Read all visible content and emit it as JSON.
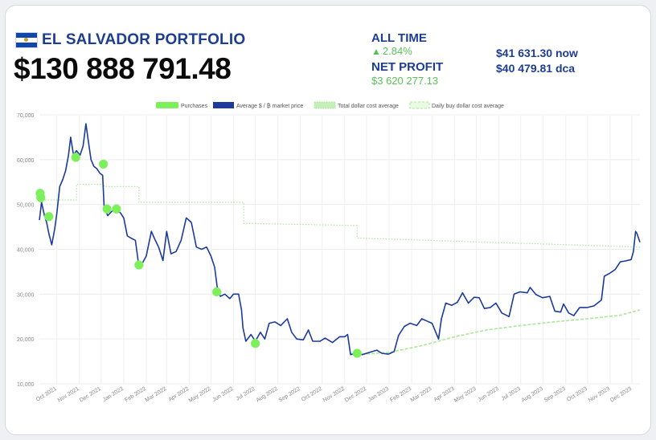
{
  "header": {
    "title": "EL SALVADOR PORTFOLIO",
    "portfolio_value": "$130 888 791.48",
    "flag_icon": "el-salvador-flag-icon",
    "colors": {
      "title": "#1d3d91",
      "positive": "#58c25a",
      "price_line": "#1b3a9c",
      "purchase": "#7bf05a",
      "dca_line": "#a9e79a"
    }
  },
  "stats": {
    "all_time_label": "ALL TIME",
    "all_time_change": "2.84%",
    "all_time_arrow": "▲",
    "net_profit_label": "NET PROFIT",
    "net_profit_value": "$3 620 277.13",
    "price_now": "$41 631.30 now",
    "price_dca": "$40 479.81 dca"
  },
  "chart_data": {
    "type": "line",
    "ylim": [
      10000,
      70000
    ],
    "y_ticks": [
      10000,
      20000,
      30000,
      40000,
      50000,
      60000,
      70000
    ],
    "y_tick_labels": [
      "10,000",
      "20,000",
      "30,000",
      "40,000",
      "50,000",
      "60,000",
      "70,000"
    ],
    "xlim": [
      "2021-09-07",
      "2023-12-12"
    ],
    "x_tick_labels": [
      "Oct 2021",
      "Nov 2021",
      "Dec 2021",
      "Jan 2022",
      "Feb 2022",
      "Mar 2022",
      "Apr 2022",
      "May 2022",
      "Jun 2022",
      "Jul 2022",
      "Aug 2022",
      "Sep 2022",
      "Oct 2022",
      "Nov 2022",
      "Dec 2022",
      "Jan 2023",
      "Feb 2023",
      "Mar 2023",
      "Apr 2023",
      "May 2023",
      "Jun 2023",
      "Jul 2023",
      "Aug 2023",
      "Sep 2023",
      "Oct 2023",
      "Nov 2023",
      "Dec 2023"
    ],
    "x_tick_dates": [
      "2021-10-01",
      "2021-11-01",
      "2021-12-01",
      "2022-01-01",
      "2022-02-01",
      "2022-03-01",
      "2022-04-01",
      "2022-05-01",
      "2022-06-01",
      "2022-07-01",
      "2022-08-01",
      "2022-09-01",
      "2022-10-01",
      "2022-11-01",
      "2022-12-01",
      "2023-01-01",
      "2023-02-01",
      "2023-03-01",
      "2023-04-01",
      "2023-05-01",
      "2023-06-01",
      "2023-07-01",
      "2023-08-01",
      "2023-09-01",
      "2023-10-01",
      "2023-11-01",
      "2023-12-01"
    ],
    "grid": true,
    "legend_position": "top-center",
    "legend": [
      {
        "name": "Purchases",
        "style": "marker"
      },
      {
        "name": "Average $ / ₿ market price",
        "style": "solid"
      },
      {
        "name": "Total dollar cost average",
        "style": "dotted"
      },
      {
        "name": "Daily buy dollar cost average",
        "style": "dashed"
      }
    ],
    "series": [
      {
        "name": "Average $ / ₿ market price",
        "points": [
          [
            "2021-09-07",
            46500
          ],
          [
            "2021-09-10",
            50500
          ],
          [
            "2021-09-14",
            47500
          ],
          [
            "2021-09-17",
            46000
          ],
          [
            "2021-09-20",
            43500
          ],
          [
            "2021-09-24",
            41000
          ],
          [
            "2021-09-28",
            44500
          ],
          [
            "2021-10-01",
            48000
          ],
          [
            "2021-10-05",
            54000
          ],
          [
            "2021-10-09",
            55500
          ],
          [
            "2021-10-13",
            57500
          ],
          [
            "2021-10-17",
            61000
          ],
          [
            "2021-10-20",
            65000
          ],
          [
            "2021-10-24",
            61000
          ],
          [
            "2021-10-28",
            62000
          ],
          [
            "2021-11-02",
            61000
          ],
          [
            "2021-11-06",
            63000
          ],
          [
            "2021-11-10",
            68000
          ],
          [
            "2021-11-13",
            64500
          ],
          [
            "2021-11-17",
            60000
          ],
          [
            "2021-11-21",
            58500
          ],
          [
            "2021-11-25",
            58000
          ],
          [
            "2021-11-29",
            57000
          ],
          [
            "2021-12-03",
            56500
          ],
          [
            "2021-12-05",
            49500
          ],
          [
            "2021-12-10",
            47500
          ],
          [
            "2021-12-16",
            48500
          ],
          [
            "2021-12-22",
            49000
          ],
          [
            "2021-12-28",
            48000
          ],
          [
            "2022-01-01",
            47000
          ],
          [
            "2022-01-06",
            43000
          ],
          [
            "2022-01-11",
            42500
          ],
          [
            "2022-01-17",
            42000
          ],
          [
            "2022-01-22",
            36000
          ],
          [
            "2022-01-27",
            37000
          ],
          [
            "2022-02-01",
            38500
          ],
          [
            "2022-02-08",
            44000
          ],
          [
            "2022-02-12",
            42500
          ],
          [
            "2022-02-18",
            40500
          ],
          [
            "2022-02-24",
            37500
          ],
          [
            "2022-03-01",
            44000
          ],
          [
            "2022-03-07",
            39000
          ],
          [
            "2022-03-14",
            39500
          ],
          [
            "2022-03-21",
            42000
          ],
          [
            "2022-03-28",
            47000
          ],
          [
            "2022-04-04",
            46000
          ],
          [
            "2022-04-11",
            40500
          ],
          [
            "2022-04-18",
            40000
          ],
          [
            "2022-04-25",
            40500
          ],
          [
            "2022-05-01",
            38500
          ],
          [
            "2022-05-06",
            36000
          ],
          [
            "2022-05-10",
            31000
          ],
          [
            "2022-05-14",
            29500
          ],
          [
            "2022-05-20",
            30000
          ],
          [
            "2022-05-27",
            29000
          ],
          [
            "2022-06-01",
            30000
          ],
          [
            "2022-06-08",
            30000
          ],
          [
            "2022-06-12",
            26500
          ],
          [
            "2022-06-14",
            22500
          ],
          [
            "2022-06-18",
            19500
          ],
          [
            "2022-06-25",
            21000
          ],
          [
            "2022-07-01",
            19500
          ],
          [
            "2022-07-08",
            21500
          ],
          [
            "2022-07-14",
            20000
          ],
          [
            "2022-07-20",
            23500
          ],
          [
            "2022-07-28",
            23800
          ],
          [
            "2022-08-05",
            23000
          ],
          [
            "2022-08-14",
            24500
          ],
          [
            "2022-08-20",
            21500
          ],
          [
            "2022-08-27",
            20000
          ],
          [
            "2022-09-05",
            19800
          ],
          [
            "2022-09-12",
            22000
          ],
          [
            "2022-09-18",
            19500
          ],
          [
            "2022-09-28",
            19500
          ],
          [
            "2022-10-05",
            20200
          ],
          [
            "2022-10-15",
            19200
          ],
          [
            "2022-10-25",
            20500
          ],
          [
            "2022-11-01",
            20500
          ],
          [
            "2022-11-05",
            21000
          ],
          [
            "2022-11-09",
            16500
          ],
          [
            "2022-11-15",
            16800
          ],
          [
            "2022-11-25",
            16500
          ],
          [
            "2022-12-05",
            17000
          ],
          [
            "2022-12-15",
            17500
          ],
          [
            "2022-12-22",
            16800
          ],
          [
            "2022-12-31",
            16600
          ],
          [
            "2023-01-08",
            17200
          ],
          [
            "2023-01-14",
            20800
          ],
          [
            "2023-01-22",
            22800
          ],
          [
            "2023-01-30",
            23500
          ],
          [
            "2023-02-08",
            23000
          ],
          [
            "2023-02-15",
            24500
          ],
          [
            "2023-02-22",
            24000
          ],
          [
            "2023-03-01",
            23500
          ],
          [
            "2023-03-10",
            20000
          ],
          [
            "2023-03-14",
            24500
          ],
          [
            "2023-03-20",
            28000
          ],
          [
            "2023-03-28",
            27500
          ],
          [
            "2023-04-05",
            28200
          ],
          [
            "2023-04-12",
            30300
          ],
          [
            "2023-04-20",
            28000
          ],
          [
            "2023-04-28",
            29300
          ],
          [
            "2023-05-05",
            29200
          ],
          [
            "2023-05-12",
            26800
          ],
          [
            "2023-05-20",
            27000
          ],
          [
            "2023-05-28",
            28000
          ],
          [
            "2023-06-05",
            25800
          ],
          [
            "2023-06-15",
            25000
          ],
          [
            "2023-06-22",
            30000
          ],
          [
            "2023-06-30",
            30500
          ],
          [
            "2023-07-10",
            30300
          ],
          [
            "2023-07-14",
            31500
          ],
          [
            "2023-07-22",
            29900
          ],
          [
            "2023-07-31",
            29200
          ],
          [
            "2023-08-10",
            29500
          ],
          [
            "2023-08-17",
            26200
          ],
          [
            "2023-08-25",
            26000
          ],
          [
            "2023-08-29",
            27800
          ],
          [
            "2023-09-05",
            25800
          ],
          [
            "2023-09-12",
            25200
          ],
          [
            "2023-09-20",
            27000
          ],
          [
            "2023-09-30",
            27000
          ],
          [
            "2023-10-10",
            27400
          ],
          [
            "2023-10-20",
            28700
          ],
          [
            "2023-10-24",
            34000
          ],
          [
            "2023-10-31",
            34600
          ],
          [
            "2023-11-08",
            35500
          ],
          [
            "2023-11-15",
            37200
          ],
          [
            "2023-11-22",
            37400
          ],
          [
            "2023-11-30",
            37700
          ],
          [
            "2023-12-03",
            39500
          ],
          [
            "2023-12-06",
            44000
          ],
          [
            "2023-12-08",
            43500
          ],
          [
            "2023-12-12",
            41600
          ]
        ]
      },
      {
        "name": "Total dollar cost average",
        "points": [
          [
            "2021-09-07",
            51000
          ],
          [
            "2021-09-30",
            51000
          ],
          [
            "2021-10-28",
            51000
          ],
          [
            "2021-10-28",
            54500
          ],
          [
            "2021-12-05",
            54500
          ],
          [
            "2021-12-05",
            54000
          ],
          [
            "2022-01-22",
            54000
          ],
          [
            "2022-01-22",
            50500
          ],
          [
            "2022-06-15",
            50500
          ],
          [
            "2022-06-15",
            45800
          ],
          [
            "2022-11-18",
            45300
          ],
          [
            "2022-11-18",
            42500
          ],
          [
            "2023-12-12",
            40500
          ]
        ]
      },
      {
        "name": "Daily buy dollar cost average",
        "points": [
          [
            "2022-11-18",
            16500
          ],
          [
            "2023-01-01",
            17000
          ],
          [
            "2023-02-15",
            18500
          ],
          [
            "2023-04-01",
            20500
          ],
          [
            "2023-05-15",
            22000
          ],
          [
            "2023-07-01",
            23000
          ],
          [
            "2023-08-15",
            23800
          ],
          [
            "2023-10-01",
            24500
          ],
          [
            "2023-11-15",
            25300
          ],
          [
            "2023-12-12",
            26500
          ]
        ]
      },
      {
        "name": "Purchases",
        "points": [
          [
            "2021-09-08",
            52500
          ],
          [
            "2021-09-09",
            51500
          ],
          [
            "2021-09-20",
            47300
          ],
          [
            "2021-10-27",
            60500
          ],
          [
            "2021-12-04",
            59000
          ],
          [
            "2021-12-09",
            49000
          ],
          [
            "2021-12-22",
            49000
          ],
          [
            "2022-01-22",
            36500
          ],
          [
            "2022-05-09",
            30500
          ],
          [
            "2022-07-01",
            19000
          ],
          [
            "2022-11-18",
            16800
          ]
        ]
      }
    ]
  }
}
